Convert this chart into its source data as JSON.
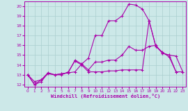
{
  "xlabel": "Windchill (Refroidissement éolien,°C)",
  "background_color": "#cce8e8",
  "grid_color": "#aacfcf",
  "line_color": "#aa00aa",
  "xlim": [
    -0.5,
    23.5
  ],
  "ylim": [
    11.8,
    20.5
  ],
  "xticks": [
    0,
    1,
    2,
    3,
    4,
    5,
    6,
    7,
    8,
    9,
    10,
    11,
    12,
    13,
    14,
    15,
    16,
    17,
    18,
    19,
    20,
    21,
    22,
    23
  ],
  "yticks": [
    12,
    13,
    14,
    15,
    16,
    17,
    18,
    19,
    20
  ],
  "line1_x": [
    0,
    1,
    2,
    3,
    4,
    5,
    6,
    7,
    8,
    9,
    10,
    11,
    12,
    13,
    14,
    15,
    16,
    17,
    18,
    19,
    20,
    21,
    22
  ],
  "line1_y": [
    13.0,
    12.0,
    12.3,
    13.2,
    13.0,
    13.1,
    13.2,
    14.5,
    14.1,
    14.7,
    17.0,
    17.0,
    18.5,
    18.5,
    19.0,
    20.2,
    20.1,
    19.7,
    18.5,
    15.9,
    15.3,
    14.8,
    13.3
  ],
  "line2_x": [
    0,
    1,
    2,
    3,
    4,
    5,
    6,
    7,
    8,
    9,
    10,
    11,
    12,
    13,
    14,
    15,
    16,
    17,
    18,
    19,
    20,
    21,
    22,
    23
  ],
  "line2_y": [
    13.0,
    12.0,
    12.5,
    13.1,
    13.0,
    13.0,
    13.3,
    14.4,
    14.0,
    13.3,
    13.3,
    13.3,
    13.4,
    13.4,
    13.5,
    13.5,
    13.5,
    13.5,
    18.5,
    15.9,
    15.2,
    15.0,
    14.9,
    13.3
  ],
  "line3_x": [
    0,
    1,
    2,
    3,
    4,
    5,
    6,
    7,
    8,
    9,
    10,
    11,
    12,
    13,
    14,
    15,
    16,
    17,
    18,
    19,
    20,
    21,
    22,
    23
  ],
  "line3_y": [
    13.0,
    12.3,
    12.5,
    13.2,
    13.0,
    13.1,
    13.2,
    13.3,
    14.1,
    13.5,
    14.3,
    14.3,
    14.5,
    14.5,
    15.0,
    15.9,
    15.5,
    15.5,
    15.9,
    16.0,
    15.2,
    15.0,
    13.3,
    13.3
  ]
}
